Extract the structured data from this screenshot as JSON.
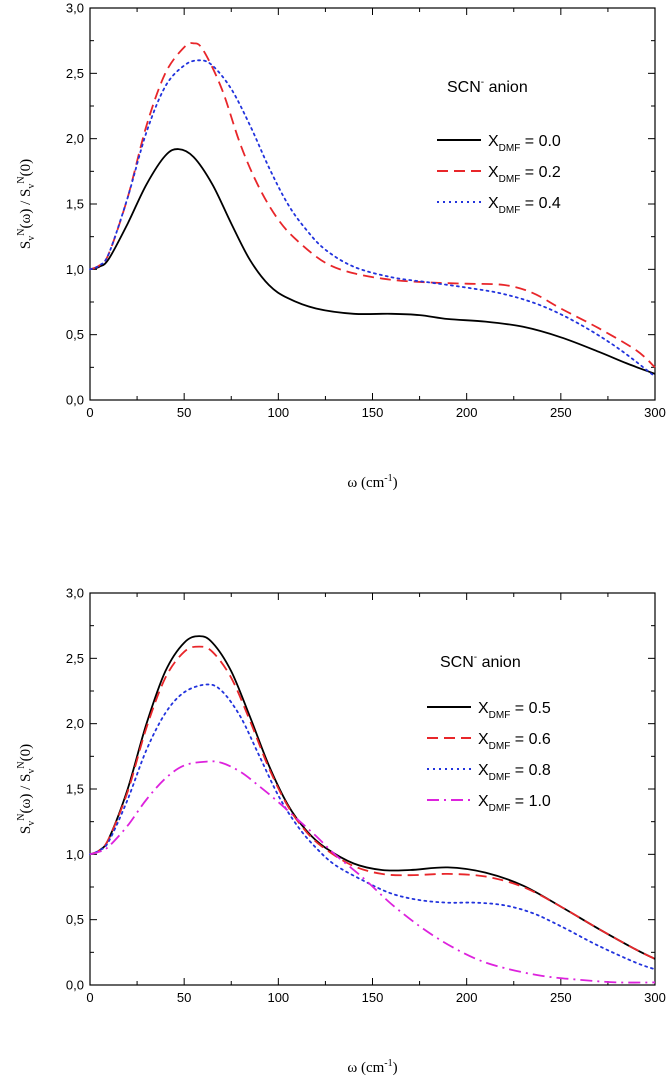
{
  "chart_data": [
    {
      "type": "line",
      "title": "",
      "annotation": {
        "main": "SCN",
        "sup": "-",
        "rest": " anion"
      },
      "xlabel": {
        "main": "ω (cm",
        "sup": "-1",
        "tail": ")"
      },
      "ylabel": "S_v^N(ω) / S_v^N(0)",
      "xlim": [
        0,
        300
      ],
      "ylim": [
        0,
        3
      ],
      "xticks": [
        {
          "value": 0,
          "label": "0"
        },
        {
          "value": 50,
          "label": "50"
        },
        {
          "value": 100,
          "label": "100"
        },
        {
          "value": 150,
          "label": "150"
        },
        {
          "value": 200,
          "label": "200"
        },
        {
          "value": 250,
          "label": "250"
        },
        {
          "value": 300,
          "label": "300"
        }
      ],
      "yticks": [
        {
          "value": 0,
          "label": "0,0"
        },
        {
          "value": 0.5,
          "label": "0,5"
        },
        {
          "value": 1,
          "label": "1,0"
        },
        {
          "value": 1.5,
          "label": "1,5"
        },
        {
          "value": 2,
          "label": "2,0"
        },
        {
          "value": 2.5,
          "label": "2,5"
        },
        {
          "value": 3,
          "label": "3,0"
        }
      ],
      "legend_position": "right",
      "series": [
        {
          "name": "X_DMF = 0.0",
          "label_main": "X",
          "label_sub": "DMF",
          "label_value": " = 0.0",
          "color": "#000000",
          "style": "solid",
          "x": [
            0,
            5,
            10,
            20,
            30,
            40,
            47,
            55,
            65,
            75,
            85,
            95,
            105,
            120,
            140,
            160,
            175,
            190,
            210,
            230,
            250,
            270,
            285,
            300
          ],
          "y": [
            1.0,
            1.02,
            1.08,
            1.35,
            1.65,
            1.87,
            1.92,
            1.86,
            1.65,
            1.35,
            1.07,
            0.88,
            0.78,
            0.7,
            0.66,
            0.66,
            0.65,
            0.62,
            0.6,
            0.56,
            0.48,
            0.37,
            0.28,
            0.2
          ]
        },
        {
          "name": "X_DMF = 0.2",
          "label_main": "X",
          "label_sub": "DMF",
          "label_value": " = 0.2",
          "color": "#e8262a",
          "style": "dashed",
          "x": [
            0,
            5,
            10,
            20,
            30,
            40,
            50,
            55,
            60,
            70,
            80,
            90,
            100,
            110,
            125,
            140,
            160,
            180,
            200,
            220,
            235,
            250,
            270,
            290,
            300
          ],
          "y": [
            1.0,
            1.03,
            1.12,
            1.55,
            2.1,
            2.5,
            2.7,
            2.73,
            2.68,
            2.38,
            1.95,
            1.62,
            1.38,
            1.22,
            1.05,
            0.97,
            0.92,
            0.9,
            0.89,
            0.88,
            0.82,
            0.7,
            0.55,
            0.38,
            0.25
          ]
        },
        {
          "name": "X_DMF = 0.4",
          "label_main": "X",
          "label_sub": "DMF",
          "label_value": " = 0.4",
          "color": "#2233dd",
          "style": "dotted",
          "x": [
            0,
            5,
            10,
            20,
            30,
            40,
            50,
            58,
            65,
            75,
            85,
            95,
            105,
            115,
            125,
            140,
            160,
            180,
            200,
            220,
            240,
            260,
            280,
            300
          ],
          "y": [
            1.0,
            1.03,
            1.12,
            1.55,
            2.05,
            2.4,
            2.56,
            2.6,
            2.56,
            2.38,
            2.1,
            1.78,
            1.5,
            1.3,
            1.15,
            1.02,
            0.94,
            0.9,
            0.86,
            0.81,
            0.72,
            0.58,
            0.4,
            0.18
          ]
        }
      ]
    },
    {
      "type": "line",
      "title": "",
      "annotation": {
        "main": "SCN",
        "sup": "-",
        "rest": " anion"
      },
      "xlabel": {
        "main": "ω (cm",
        "sup": "-1",
        "tail": ")"
      },
      "ylabel": "S_v^N(ω) / S_v^N(0)",
      "xlim": [
        0,
        300
      ],
      "ylim": [
        0,
        3
      ],
      "xticks": [
        {
          "value": 0,
          "label": "0"
        },
        {
          "value": 50,
          "label": "50"
        },
        {
          "value": 100,
          "label": "100"
        },
        {
          "value": 150,
          "label": "150"
        },
        {
          "value": 200,
          "label": "200"
        },
        {
          "value": 250,
          "label": "250"
        },
        {
          "value": 300,
          "label": "300"
        }
      ],
      "yticks": [
        {
          "value": 0,
          "label": "0,0"
        },
        {
          "value": 0.5,
          "label": "0,5"
        },
        {
          "value": 1,
          "label": "1,0"
        },
        {
          "value": 1.5,
          "label": "1,5"
        },
        {
          "value": 2,
          "label": "2,0"
        },
        {
          "value": 2.5,
          "label": "2,5"
        },
        {
          "value": 3,
          "label": "3,0"
        }
      ],
      "legend_position": "right",
      "series": [
        {
          "name": "X_DMF = 0.5",
          "label_main": "X",
          "label_sub": "DMF",
          "label_value": " = 0.5",
          "color": "#000000",
          "style": "solid",
          "x": [
            0,
            5,
            10,
            20,
            30,
            40,
            50,
            58,
            65,
            75,
            85,
            95,
            105,
            115,
            125,
            140,
            155,
            170,
            190,
            210,
            230,
            250,
            270,
            290,
            300
          ],
          "y": [
            1.0,
            1.03,
            1.12,
            1.5,
            2.0,
            2.4,
            2.62,
            2.67,
            2.62,
            2.4,
            2.05,
            1.68,
            1.38,
            1.18,
            1.05,
            0.93,
            0.88,
            0.88,
            0.9,
            0.86,
            0.76,
            0.6,
            0.43,
            0.27,
            0.2
          ]
        },
        {
          "name": "X_DMF = 0.6",
          "label_main": "X",
          "label_sub": "DMF",
          "label_value": " = 0.6",
          "color": "#e8262a",
          "style": "dashed",
          "x": [
            0,
            5,
            10,
            20,
            30,
            40,
            50,
            58,
            65,
            75,
            85,
            95,
            105,
            115,
            125,
            140,
            155,
            170,
            190,
            210,
            230,
            250,
            270,
            290,
            300
          ],
          "y": [
            1.0,
            1.03,
            1.12,
            1.48,
            1.97,
            2.35,
            2.55,
            2.59,
            2.55,
            2.35,
            2.02,
            1.66,
            1.37,
            1.17,
            1.04,
            0.91,
            0.85,
            0.84,
            0.85,
            0.83,
            0.75,
            0.6,
            0.43,
            0.27,
            0.2
          ]
        },
        {
          "name": "X_DMF = 0.8",
          "label_main": "X",
          "label_sub": "DMF",
          "label_value": " = 0.8",
          "color": "#2233dd",
          "style": "dotted",
          "x": [
            0,
            5,
            10,
            20,
            30,
            40,
            50,
            62,
            70,
            80,
            90,
            100,
            110,
            120,
            130,
            145,
            160,
            175,
            190,
            205,
            220,
            235,
            250,
            270,
            290,
            300
          ],
          "y": [
            1.0,
            1.03,
            1.1,
            1.42,
            1.8,
            2.08,
            2.24,
            2.3,
            2.25,
            2.05,
            1.75,
            1.45,
            1.22,
            1.05,
            0.92,
            0.8,
            0.7,
            0.65,
            0.63,
            0.63,
            0.61,
            0.55,
            0.45,
            0.3,
            0.17,
            0.12
          ]
        },
        {
          "name": "X_DMF = 1.0",
          "label_main": "X",
          "label_sub": "DMF",
          "label_value": " = 1.0",
          "color": "#dd22dd",
          "style": "dashdot",
          "x": [
            0,
            5,
            10,
            20,
            30,
            40,
            50,
            62,
            70,
            80,
            90,
            100,
            110,
            120,
            130,
            145,
            160,
            175,
            190,
            205,
            220,
            240,
            260,
            280,
            300
          ],
          "y": [
            1.0,
            1.02,
            1.06,
            1.22,
            1.42,
            1.58,
            1.68,
            1.71,
            1.7,
            1.63,
            1.52,
            1.4,
            1.27,
            1.14,
            1.0,
            0.82,
            0.62,
            0.45,
            0.31,
            0.2,
            0.13,
            0.07,
            0.04,
            0.02,
            0.02
          ]
        }
      ]
    }
  ]
}
